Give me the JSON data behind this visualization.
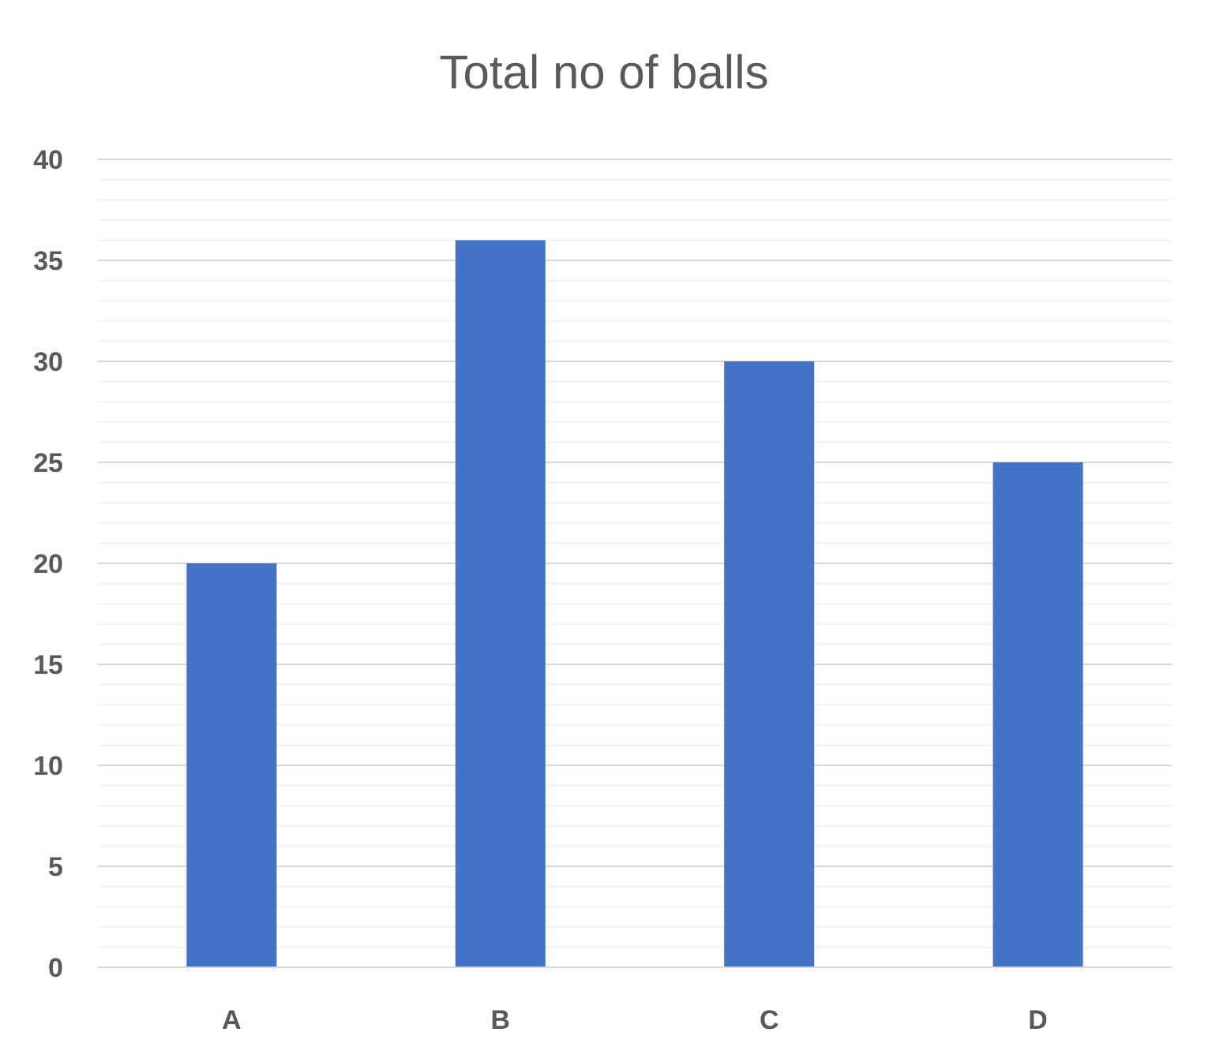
{
  "chart_data": {
    "type": "bar",
    "title": "Total no of balls",
    "categories": [
      "A",
      "B",
      "C",
      "D"
    ],
    "values": [
      20,
      36,
      30,
      25
    ],
    "color": "#4472c4",
    "ylim": [
      0,
      40
    ],
    "yticks": [
      0,
      {
        "value": 1,
        "label": null
      },
      {
        "value": 2,
        "label": null
      },
      {
        "value": 3,
        "label": null
      },
      {
        "value": 4,
        "label": null
      },
      5,
      {
        "value": 6,
        "label": null
      },
      {
        "value": 7,
        "label": null
      },
      {
        "value": 8,
        "label": null
      },
      {
        "value": 9,
        "label": null
      },
      10,
      {
        "value": 11,
        "label": null
      },
      {
        "value": 12,
        "label": null
      },
      {
        "value": 13,
        "label": null
      },
      {
        "value": 14,
        "label": null
      },
      15,
      {
        "value": 16,
        "label": null
      },
      {
        "value": 17,
        "label": null
      },
      {
        "value": 18,
        "label": null
      },
      {
        "value": 19,
        "label": null
      },
      20,
      {
        "value": 21,
        "label": null
      },
      {
        "value": 22,
        "label": null
      },
      {
        "value": 23,
        "label": null
      },
      {
        "value": 24,
        "label": null
      },
      25,
      {
        "value": 26,
        "label": null
      },
      {
        "value": 27,
        "label": null
      },
      {
        "value": 28,
        "label": null
      },
      {
        "value": 29,
        "label": null
      },
      30,
      {
        "value": 31,
        "label": null
      },
      {
        "value": 32,
        "label": null
      },
      {
        "value": 33,
        "label": null
      },
      {
        "value": 34,
        "label": null
      },
      35,
      {
        "value": 36,
        "label": null
      },
      {
        "value": 37,
        "label": null
      },
      {
        "value": 38,
        "label": null
      },
      {
        "value": 39,
        "label": null
      },
      40
    ],
    "grid": "y"
  }
}
